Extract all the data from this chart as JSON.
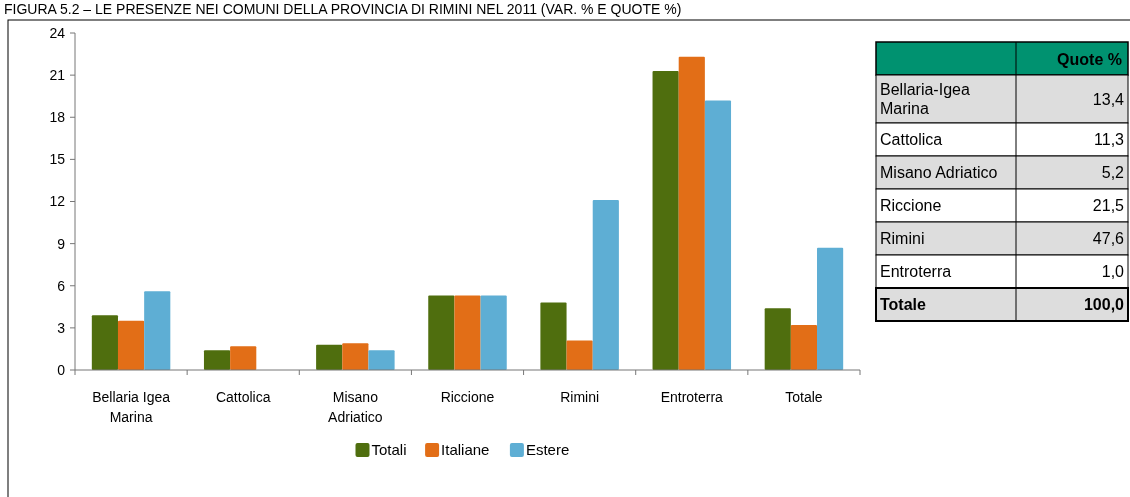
{
  "chart_data": [
    {
      "type": "bar",
      "title": "FIGURA 5.2 – LE PRESENZE NEI COMUNI DELLA PROVINCIA DI RIMINI NEL 2011 (VAR. % E QUOTE %)",
      "categories": [
        "Bellaria Igea Marina",
        "Cattolica",
        "Misano Adriatico",
        "Riccione",
        "Rimini",
        "Entroterra",
        "Totale"
      ],
      "series": [
        {
          "name": "Totali",
          "color": "#4f6e0e",
          "values": [
            3.9,
            1.4,
            1.8,
            5.3,
            4.8,
            21.3,
            4.4
          ]
        },
        {
          "name": "Italiane",
          "color": "#e26e17",
          "values": [
            3.5,
            1.7,
            1.9,
            5.3,
            2.1,
            22.3,
            3.2
          ]
        },
        {
          "name": "Estere",
          "color": "#5eaed4",
          "values": [
            5.6,
            null,
            1.4,
            5.3,
            12.1,
            19.2,
            8.7
          ]
        }
      ],
      "ylim": [
        0,
        24
      ],
      "yticks": [
        0,
        3,
        6,
        9,
        12,
        15,
        18,
        21,
        24
      ],
      "grid": false,
      "legend": "bottom"
    },
    {
      "type": "other",
      "title": "Quote %",
      "categories": [
        "Bellaria-Igea Marina",
        "Cattolica",
        "Misano Adriatico",
        "Riccione",
        "Rimini",
        "Entroterra",
        "Totale"
      ],
      "value_labels": [
        "13,4",
        "11,3",
        "5,2",
        "21,5",
        "47,6",
        "1,0",
        "100,0"
      ]
    }
  ]
}
